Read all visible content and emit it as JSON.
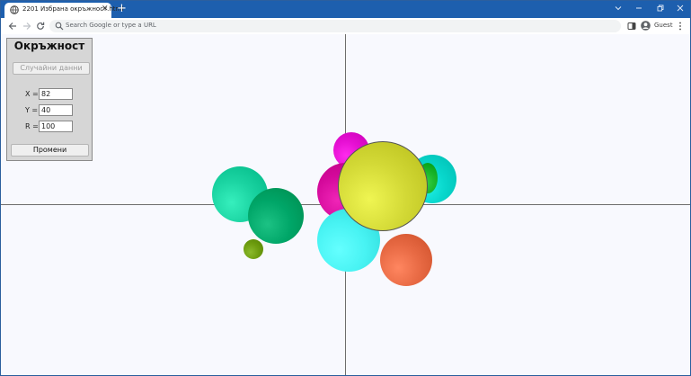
{
  "browser": {
    "tab_title": "2201 Избрана окръжност.html",
    "tab_close": "✕",
    "new_tab": "+",
    "omnibox_placeholder": "Search Google or type a URL",
    "profile_label": "Guest",
    "icons": {
      "back": "arrow-left-icon",
      "forward": "arrow-right-icon",
      "reload": "reload-icon",
      "search": "search-icon",
      "sidepanel": "side-panel-icon",
      "profile": "profile-icon",
      "menu": "kebab-menu-icon",
      "favicon": "globe-icon",
      "minimize": "minimize-icon",
      "restore": "restore-icon",
      "close": "close-icon",
      "tab_search": "chevron-down-icon"
    }
  },
  "panel": {
    "title": "Окръжност",
    "random_button": "Случайни данни",
    "fields": {
      "x": {
        "label": "X =",
        "value": "82"
      },
      "y": {
        "label": "Y =",
        "value": "40"
      },
      "r": {
        "label": "R =",
        "value": "100"
      }
    },
    "change_button": "Промени"
  },
  "canvas": {
    "background": "#f8f9fe",
    "axis_color": "#6d6d6d",
    "circles": [
      {
        "color": "#1ad3a1"
      },
      {
        "color": "#00a668"
      },
      {
        "color": "#6f9e10"
      },
      {
        "color": "#e50fd2"
      },
      {
        "color": "#d4099b"
      },
      {
        "color": "#48f3f3"
      },
      {
        "color": "#08d7cc"
      },
      {
        "color": "#1cb72c"
      },
      {
        "color": "#e86a44"
      },
      {
        "color": "#d3d936",
        "selected": true
      }
    ]
  }
}
